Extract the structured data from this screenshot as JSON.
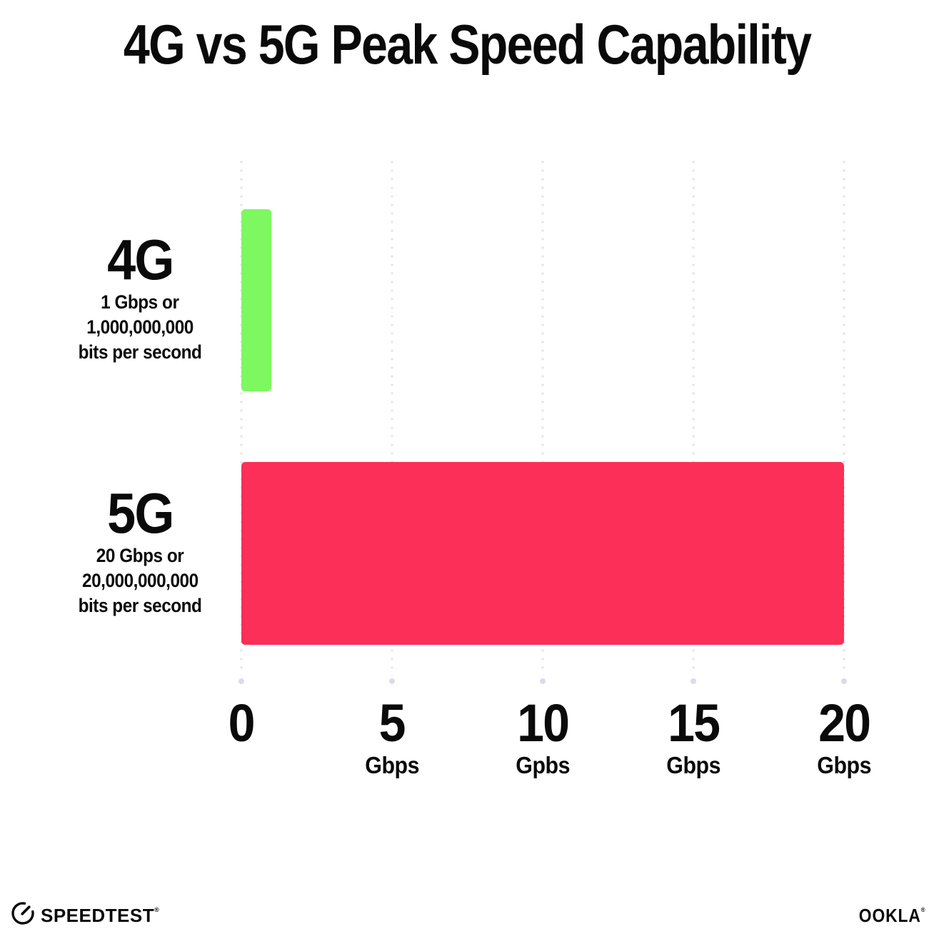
{
  "title": "4G vs 5G Peak Speed Capability",
  "chart_data": {
    "type": "bar",
    "orientation": "horizontal",
    "title": "4G vs 5G Peak Speed Capability",
    "categories": [
      "4G",
      "5G"
    ],
    "values": [
      1,
      20
    ],
    "value_unit": "Gbps",
    "bars": [
      {
        "label": "4G",
        "sublabel_lines": [
          "1 Gbps or",
          "1,000,000,000",
          "bits per second"
        ],
        "value": 1,
        "color": "#7ef860"
      },
      {
        "label": "5G",
        "sublabel_lines": [
          "20 Gbps or",
          "20,000,000,000",
          "bits per second"
        ],
        "value": 20,
        "color": "#fc2f58"
      }
    ],
    "x_axis": {
      "range": [
        0,
        20
      ],
      "grid": "dotted vertical",
      "ticks": [
        {
          "number": "0",
          "unit": ""
        },
        {
          "number": "5",
          "unit": "Gbps"
        },
        {
          "number": "10",
          "unit": "Gpbs"
        },
        {
          "number": "15",
          "unit": "Gbps"
        },
        {
          "number": "20",
          "unit": "Gbps"
        }
      ]
    },
    "legend": "none"
  },
  "footer": {
    "speedtest_label": "SPEEDTEST",
    "speedtest_trademark": "®",
    "ookla_label": "OOKLA",
    "ookla_trademark": "®"
  },
  "colors": {
    "background": "#ffffff",
    "text": "#0a0a0a",
    "bar_4g": "#7ef860",
    "bar_5g": "#fc2f58",
    "grid_dot": "#e0e2ec",
    "grid_end_dot": "#d9dde9"
  }
}
